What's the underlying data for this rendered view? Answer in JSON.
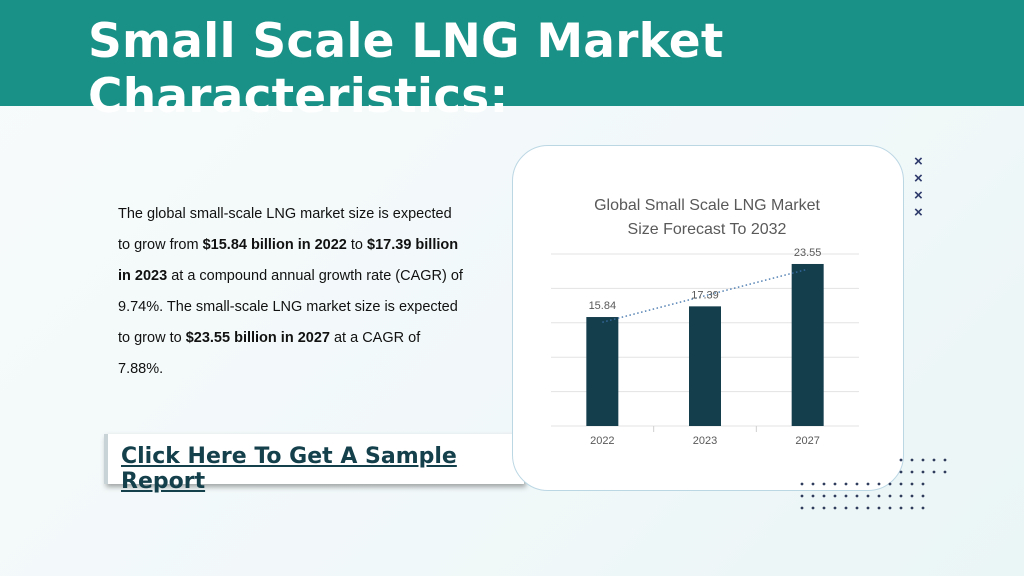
{
  "header": {
    "title": "Small Scale LNG Market Characteristics:"
  },
  "description": {
    "p1": "The global small-scale LNG market size is expected to grow from ",
    "b1": "$15.84 billion in 2022",
    "p2": " to ",
    "b2": "$17.39 billion in 2023",
    "p3": " at a compound annual growth rate (CAGR) of 9.74%. The small-scale LNG market size is expected to grow to ",
    "b3": "$23.55 billion in 2027",
    "p4": " at a CAGR of 7.88%."
  },
  "cta": {
    "label": "Click Here To Get A Sample Report"
  },
  "chart_data": {
    "type": "bar",
    "title": "Global Small Scale LNG Market Size Forecast To 2032",
    "title_lines": [
      "Global Small Scale LNG Market",
      "Size Forecast To 2032"
    ],
    "categories": [
      "2022",
      "2023",
      "2027"
    ],
    "values": [
      15.84,
      17.39,
      23.55
    ],
    "data_labels": [
      "15.84",
      "17.39",
      "23.55"
    ],
    "ylim": [
      0,
      25
    ],
    "grid": true,
    "trendline": "dotted",
    "legend": "none",
    "colors": {
      "bar": "#153e4d",
      "trend": "#3a6fa8",
      "grid": "#e3e3e3"
    }
  },
  "decor": {
    "x_icon_glyph": "×"
  }
}
